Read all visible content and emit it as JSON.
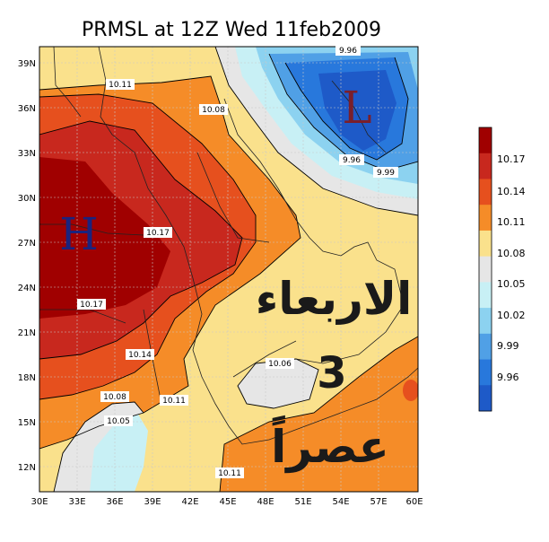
{
  "title": "PRMSL at 12Z Wed 11feb2009",
  "axes": {
    "lat_ticks": [
      "39N",
      "36N",
      "33N",
      "30N",
      "27N",
      "24N",
      "21N",
      "18N",
      "15N",
      "12N"
    ],
    "lon_ticks": [
      "30E",
      "33E",
      "36E",
      "39E",
      "42E",
      "45E",
      "48E",
      "51E",
      "54E",
      "57E",
      "60E"
    ]
  },
  "legend": {
    "levels": [
      "10.17",
      "10.14",
      "10.11",
      "10.08",
      "10.05",
      "10.02",
      "9.99",
      "9.96"
    ],
    "colors": [
      "#a00000",
      "#c8281e",
      "#e6501e",
      "#f58c28",
      "#fae18c",
      "#e6e6e6",
      "#c8f0f5",
      "#8cd2f0",
      "#50a0e6",
      "#2878dc",
      "#1e5ac8"
    ]
  },
  "contour_labels": [
    {
      "text": "9.96",
      "id": "top"
    },
    {
      "text": "10.11",
      "id": "nw"
    },
    {
      "text": "10.08",
      "id": "north"
    },
    {
      "text": "9.96",
      "id": "low"
    },
    {
      "text": "9.99",
      "id": "low-outer"
    },
    {
      "text": "10.17",
      "id": "center"
    },
    {
      "text": "10.17",
      "id": "west"
    },
    {
      "text": "10.14",
      "id": "sw"
    },
    {
      "text": "10.08",
      "id": "south"
    },
    {
      "text": "10.11",
      "id": "south-center"
    },
    {
      "text": "10.05",
      "id": "south-west"
    },
    {
      "text": "10.06",
      "id": "east"
    },
    {
      "text": "10.11",
      "id": "bottom"
    }
  ],
  "pressure_centers": {
    "high": "H",
    "low": "L"
  },
  "overlay_text": {
    "day": "الاربعاء",
    "number": "3",
    "time": "عصراً"
  },
  "colors": {
    "high_letter": "#1a237e",
    "low_letter": "#7a1f2b",
    "overlay_text": "#1a1a1a"
  }
}
